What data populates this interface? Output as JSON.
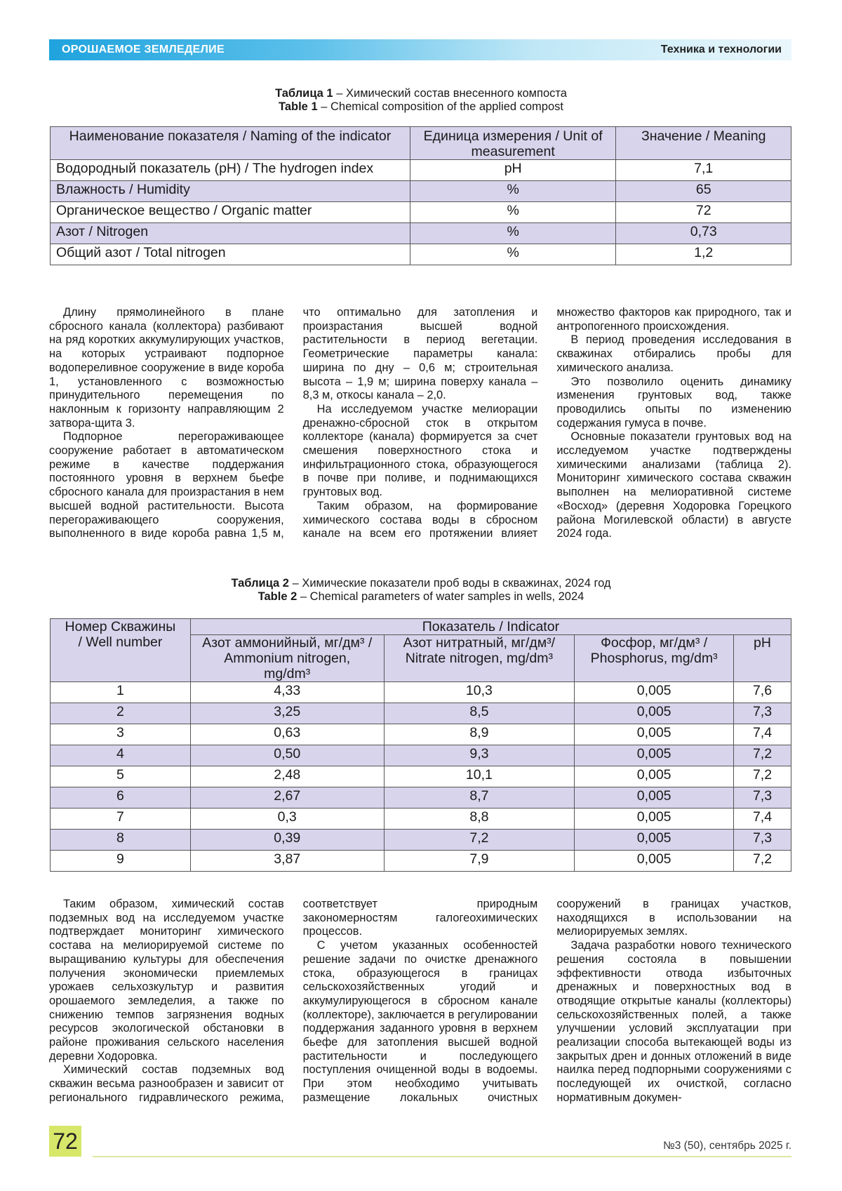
{
  "header": {
    "section": "ОРОШАЕМОЕ ЗЕМЛЕДЕЛИЕ",
    "rubric": "Техника и технологии"
  },
  "table1": {
    "caption_ru": {
      "label": "Таблица 1",
      "text": "– Химический состав внесенного компоста"
    },
    "caption_en": {
      "label": "Table 1",
      "text": "– Chemical composition of the applied compost"
    },
    "header": [
      "Наименование показателя / Naming of the indicator",
      "Единица измерения / Unit of measurement",
      "Значение / Meaning"
    ],
    "rows": [
      [
        "Водородный показатель (pH) / The hydrogen index",
        "pH",
        "7,1"
      ],
      [
        "Влажность / Humidity",
        "%",
        "65"
      ],
      [
        "Органическое вещество / Organic matter",
        "%",
        "72"
      ],
      [
        "Азот / Nitrogen",
        "%",
        "0,73"
      ],
      [
        "Общий азот / Total nitrogen",
        "%",
        "1,2"
      ]
    ]
  },
  "section1": [
    "Длину прямолинейного в плане сбросного канала (коллектора) разбивают на ряд коротких аккумулирующих участков, на которых устраивают подпорное водопереливное сооружение в виде короба 1, установленного с возможностью принудительного перемещения по наклонным к горизонту направляющим 2 затвора-щита 3.",
    "Подпорное перегораживающее сооружение работает в автоматическом режиме в качестве поддержания постоянного уровня в верхнем бьефе сбросного канала для произрастания в нем высшей водной растительности. Высота перегораживающего сооружения, выполненного в виде короба равна 1,5 м, что оптимально для затопления и произрастания высшей водной растительности в период вегетации. Геометрические параметры канала: ширина по дну – 0,6 м; строительная высота – 1,9 м; ширина поверху канала – 8,3 м, откосы канала – 2,0.",
    "На исследуемом участке мелиорации дренажно-сбросной сток в открытом коллекторе (канала) формируется за счет смешения поверхностного стока и инфильтрационного стока, образующегося в почве при поливе, и поднимающихся грунтовых вод.",
    "Таким образом, на формирование химического состава воды в сбросном канале на всем его протяжении влияет множество факторов как природного, так и антропогенного происхождения.",
    "В период проведения исследования в скважинах отбирались пробы для химического анализа.",
    "Это позволило оценить динамику изменения грунтовых вод, также проводились опыты по изменению содержания гумуса в почве.",
    "Основные показатели грунтовых вод на исследуемом участке подтверждены химическими анализами (таблица 2). Мониторинг химического состава скважин выполнен на мелиоративной системе «Восход» (деревня Ходоровка Горецкого района Могилевской области) в августе 2024 года."
  ],
  "table2": {
    "caption_ru": {
      "label": "Таблица 2",
      "text": "– Химические показатели проб воды в скважинах, 2024 год"
    },
    "caption_en": {
      "label": "Table 2",
      "text": "– Chemical parameters of water samples in wells, 2024"
    },
    "well_header": "Номер Скважины / Well number",
    "group_header": "Показатель / Indicator",
    "sub_headers": [
      "Азот аммонийный, мг/дм³ / Ammonium nitrogen, mg/dm³",
      "Азот нитратный, мг/дм³/ Nitrate nitrogen, mg/dm³",
      "Фосфор, мг/дм³ / Phosphorus, mg/dm³",
      "pH"
    ],
    "rows": [
      [
        "1",
        "4,33",
        "10,3",
        "0,005",
        "7,6"
      ],
      [
        "2",
        "3,25",
        "8,5",
        "0,005",
        "7,3"
      ],
      [
        "3",
        "0,63",
        "8,9",
        "0,005",
        "7,4"
      ],
      [
        "4",
        "0,50",
        "9,3",
        "0,005",
        "7,2"
      ],
      [
        "5",
        "2,48",
        "10,1",
        "0,005",
        "7,2"
      ],
      [
        "6",
        "2,67",
        "8,7",
        "0,005",
        "7,3"
      ],
      [
        "7",
        "0,3",
        "8,8",
        "0,005",
        "7,4"
      ],
      [
        "8",
        "0,39",
        "7,2",
        "0,005",
        "7,3"
      ],
      [
        "9",
        "3,87",
        "7,9",
        "0,005",
        "7,2"
      ]
    ]
  },
  "section2": [
    "Таким образом, химический состав подземных вод на исследуемом участке подтверждает мониторинг химического состава на мелиорируемой системе по выращиванию культуры для обеспечения получения экономически приемлемых урожаев сельхозкультур и развития орошаемого земледелия, а также по снижению темпов загрязнения водных ресурсов экологической обстановки в районе проживания сельского населения деревни Ходоровка.",
    "Химический состав подземных вод скважин весьма разнообразен и зависит от регионального гидравлического режима, соответствует природным закономерностям галогеохимических процессов.",
    "С учетом указанных особенностей решение задачи по очистке дренажного стока, образующегося в границах сельскохозяйственных угодий и аккумулирующегося в сбросном канале (коллекторе), заключается в регулировании поддержания заданного уровня в верхнем бьефе для затопления высшей водной растительности и последующего поступления очищенной воды в водоемы. При этом необходимо учитывать размещение локальных очистных сооружений в границах участков, находящихся в использовании на мелиорируемых землях.",
    "Задача разработки нового технического решения состояла в повышении эффективности отвода избыточных дренажных и поверхностных вод в отводящие открытые каналы (коллекторы) сельскохозяйственных полей, а также улучшении условий эксплуатации при реализации способа вытекающей воды из закрытых дрен и донных отложений в виде наилка перед подпорными сооружениями с последующей их очисткой, согласно нормативным докумен-"
  ],
  "footer": {
    "page": "72",
    "issue": "№3 (50), сентябрь 2025 г."
  }
}
